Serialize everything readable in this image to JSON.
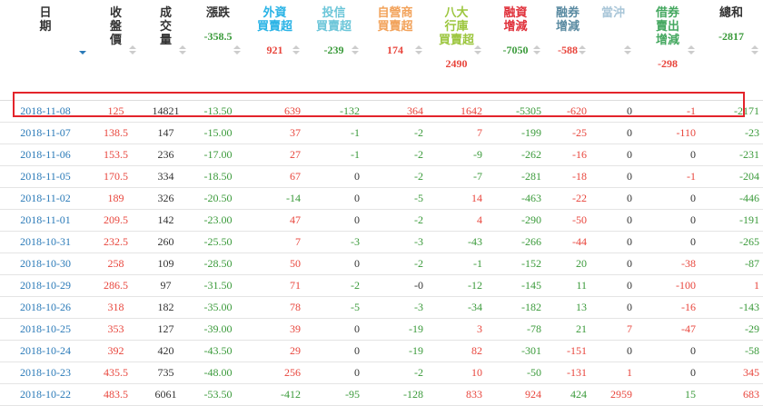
{
  "table": {
    "columns": [
      {
        "label": "日\n期",
        "color": "#333333",
        "align": "c"
      },
      {
        "label": "收\n盤\n價",
        "color": "#333333",
        "align": "c"
      },
      {
        "label": "成\n交\n量",
        "color": "#333333",
        "align": "c"
      },
      {
        "label": "漲跌",
        "color": "#333333",
        "align": "c",
        "summary": "-358.5"
      },
      {
        "label": "外資\n買賣超",
        "color": "#29b3e6",
        "align": "r",
        "summary": "921"
      },
      {
        "label": "投信\n買賣超",
        "color": "#6cc6d9",
        "align": "r",
        "summary": "-239"
      },
      {
        "label": "自營商\n買賣超",
        "color": "#f2a25a",
        "align": "r",
        "summary": "174"
      },
      {
        "label": "八大\n行庫\n買賣超",
        "color": "#9cc63e",
        "align": "r",
        "summary": "2490"
      },
      {
        "label": "融資\n增減",
        "color": "#e0303a",
        "align": "r",
        "summary": "-7050"
      },
      {
        "label": "融券\n增減",
        "color": "#5b8ba2",
        "align": "r",
        "summary": "-588",
        "invert": true
      },
      {
        "label": "當沖",
        "color": "#a9c6d8",
        "align": "r"
      },
      {
        "label": "借券\n賣出\n增減",
        "color": "#45a860",
        "align": "r",
        "summary": "-298",
        "invert": true
      },
      {
        "label": "總和",
        "color": "#333333",
        "align": "r",
        "summary": "-2817"
      }
    ],
    "rows": [
      [
        "2018-11-08",
        "125",
        "14821",
        "-13.50",
        "639",
        "-132",
        "364",
        "1642",
        "-5305",
        "-620",
        "0",
        "-1",
        "-2171"
      ],
      [
        "2018-11-07",
        "138.5",
        "147",
        "-15.00",
        "37",
        "-1",
        "-2",
        "7",
        "-199",
        "-25",
        "0",
        "-110",
        "-23"
      ],
      [
        "2018-11-06",
        "153.5",
        "236",
        "-17.00",
        "27",
        "-1",
        "-2",
        "-9",
        "-262",
        "-16",
        "0",
        "0",
        "-231"
      ],
      [
        "2018-11-05",
        "170.5",
        "334",
        "-18.50",
        "67",
        "0",
        "-2",
        "-7",
        "-281",
        "-18",
        "0",
        "-1",
        "-204"
      ],
      [
        "2018-11-02",
        "189",
        "326",
        "-20.50",
        "-14",
        "0",
        "-5",
        "14",
        "-463",
        "-22",
        "0",
        "0",
        "-446"
      ],
      [
        "2018-11-01",
        "209.5",
        "142",
        "-23.00",
        "47",
        "0",
        "-2",
        "4",
        "-290",
        "-50",
        "0",
        "0",
        "-191"
      ],
      [
        "2018-10-31",
        "232.5",
        "260",
        "-25.50",
        "7",
        "-3",
        "-3",
        "-43",
        "-266",
        "-44",
        "0",
        "0",
        "-265"
      ],
      [
        "2018-10-30",
        "258",
        "109",
        "-28.50",
        "50",
        "0",
        "-2",
        "-1",
        "-152",
        "20",
        "0",
        "-38",
        "-87"
      ],
      [
        "2018-10-29",
        "286.5",
        "97",
        "-31.50",
        "71",
        "-2",
        "-0",
        "-12",
        "-145",
        "11",
        "0",
        "-100",
        "1"
      ],
      [
        "2018-10-26",
        "318",
        "182",
        "-35.00",
        "78",
        "-5",
        "-3",
        "-34",
        "-182",
        "13",
        "0",
        "-16",
        "-143"
      ],
      [
        "2018-10-25",
        "353",
        "127",
        "-39.00",
        "39",
        "0",
        "-19",
        "3",
        "-78",
        "21",
        "7",
        "-47",
        "-29"
      ],
      [
        "2018-10-24",
        "392",
        "420",
        "-43.50",
        "29",
        "0",
        "-19",
        "82",
        "-301",
        "-151",
        "0",
        "0",
        "-58"
      ],
      [
        "2018-10-23",
        "435.5",
        "735",
        "-48.00",
        "256",
        "0",
        "-2",
        "10",
        "-50",
        "-131",
        "1",
        "0",
        "345"
      ],
      [
        "2018-10-22",
        "483.5",
        "6061",
        "-53.50",
        "-412",
        "-95",
        "-128",
        "833",
        "924",
        "424",
        "2959",
        "15",
        "683"
      ]
    ]
  }
}
